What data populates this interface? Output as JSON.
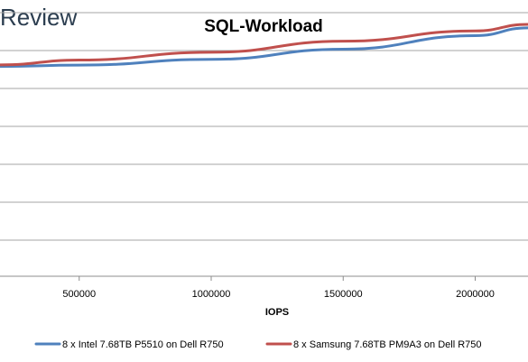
{
  "brand": {
    "text": "Review"
  },
  "chart_data": {
    "type": "line",
    "title": "SQL-Workload",
    "xlabel": "IOPS",
    "ylabel": "",
    "x_ticks": [
      500000,
      1000000,
      1500000,
      2000000
    ],
    "x_tick_labels": [
      "500000",
      "1000000",
      "1500000",
      "2000000"
    ],
    "xlim": [
      200000,
      2200000
    ],
    "y_gridline_count": 6,
    "grid": true,
    "legend_position": "bottom",
    "series": [
      {
        "name": "8 x Intel 7.68TB P5510 on Dell R750",
        "color": "#4f81bd",
        "points": [
          [
            200000,
            0.796
          ],
          [
            500000,
            0.801
          ],
          [
            1000000,
            0.8226
          ],
          [
            1500000,
            0.8615
          ],
          [
            2000000,
            0.9127
          ],
          [
            2200000,
            0.9424
          ]
        ]
      },
      {
        "name": "8 x Samsung 7.68TB PM9A3 on Dell R750",
        "color": "#c0504d",
        "points": [
          [
            200000,
            0.802
          ],
          [
            500000,
            0.8201
          ],
          [
            1000000,
            0.8498
          ],
          [
            1500000,
            0.8915
          ],
          [
            2000000,
            0.9307
          ],
          [
            2200000,
            0.9557
          ]
        ]
      }
    ]
  }
}
